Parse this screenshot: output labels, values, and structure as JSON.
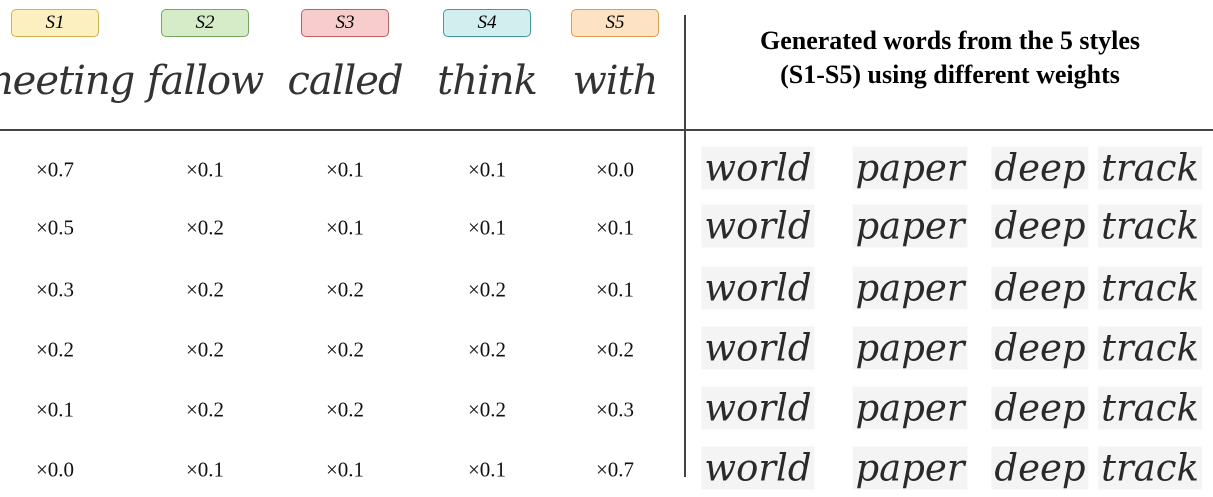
{
  "title": [
    "Generated words from the 5 styles",
    "(S1-S5) using different weights"
  ],
  "styles": [
    {
      "label": "S1",
      "word": "meeting"
    },
    {
      "label": "S2",
      "word": "fallow"
    },
    {
      "label": "S3",
      "word": "called"
    },
    {
      "label": "S4",
      "word": "think"
    },
    {
      "label": "S5",
      "word": "with"
    }
  ],
  "rows": [
    {
      "weights": [
        "×0.7",
        "×0.1",
        "×0.1",
        "×0.1",
        "×0.0"
      ],
      "words": [
        "world",
        "paper",
        "deep",
        "track"
      ]
    },
    {
      "weights": [
        "×0.5",
        "×0.2",
        "×0.1",
        "×0.1",
        "×0.1"
      ],
      "words": [
        "world",
        "paper",
        "deep",
        "track"
      ]
    },
    {
      "weights": [
        "×0.3",
        "×0.2",
        "×0.2",
        "×0.2",
        "×0.1"
      ],
      "words": [
        "world",
        "paper",
        "deep",
        "track"
      ]
    },
    {
      "weights": [
        "×0.2",
        "×0.2",
        "×0.2",
        "×0.2",
        "×0.2"
      ],
      "words": [
        "world",
        "paper",
        "deep",
        "track"
      ]
    },
    {
      "weights": [
        "×0.1",
        "×0.2",
        "×0.2",
        "×0.2",
        "×0.3"
      ],
      "words": [
        "world",
        "paper",
        "deep",
        "track"
      ]
    },
    {
      "weights": [
        "×0.0",
        "×0.1",
        "×0.1",
        "×0.1",
        "×0.7"
      ],
      "words": [
        "world",
        "paper",
        "deep",
        "track"
      ]
    }
  ]
}
